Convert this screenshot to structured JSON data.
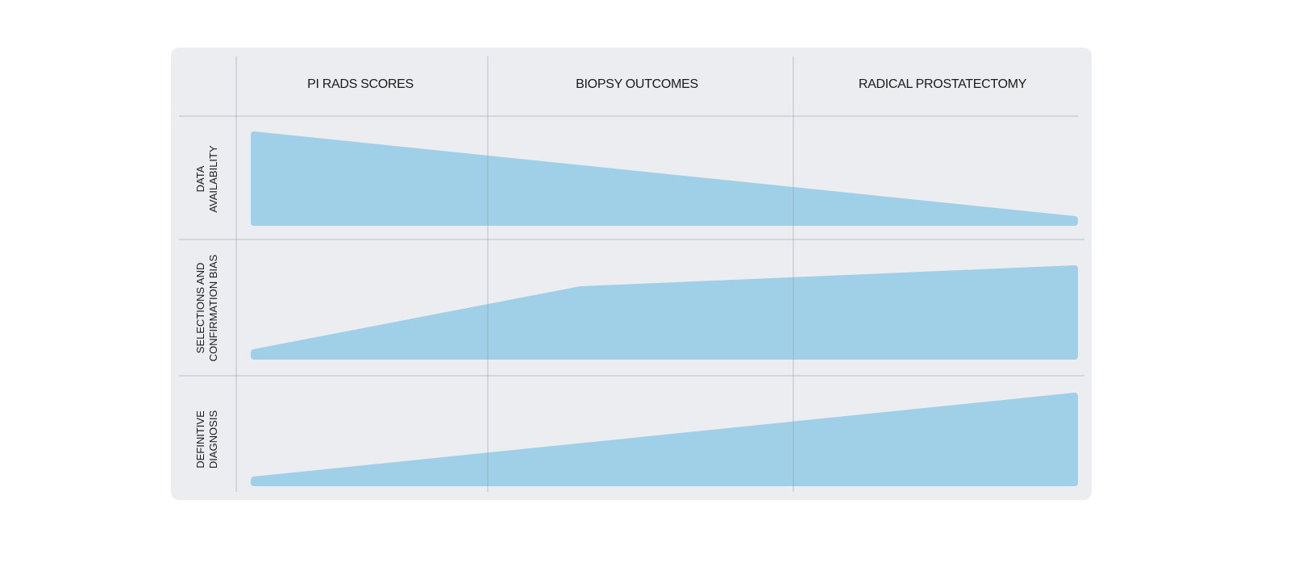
{
  "header": {
    "columns": [
      "PI RADS SCORES",
      "BIOPSY OUTCOMES",
      "RADICAL PROSTATECTOMY"
    ]
  },
  "rows": [
    {
      "lines": [
        "DATA",
        "AVAILABILITY"
      ]
    },
    {
      "lines": [
        "SELECTIONS AND",
        "CONFIRMATION BIAS"
      ]
    },
    {
      "lines": [
        "DEFINITIVE",
        "DIAGNOSIS"
      ]
    }
  ]
}
